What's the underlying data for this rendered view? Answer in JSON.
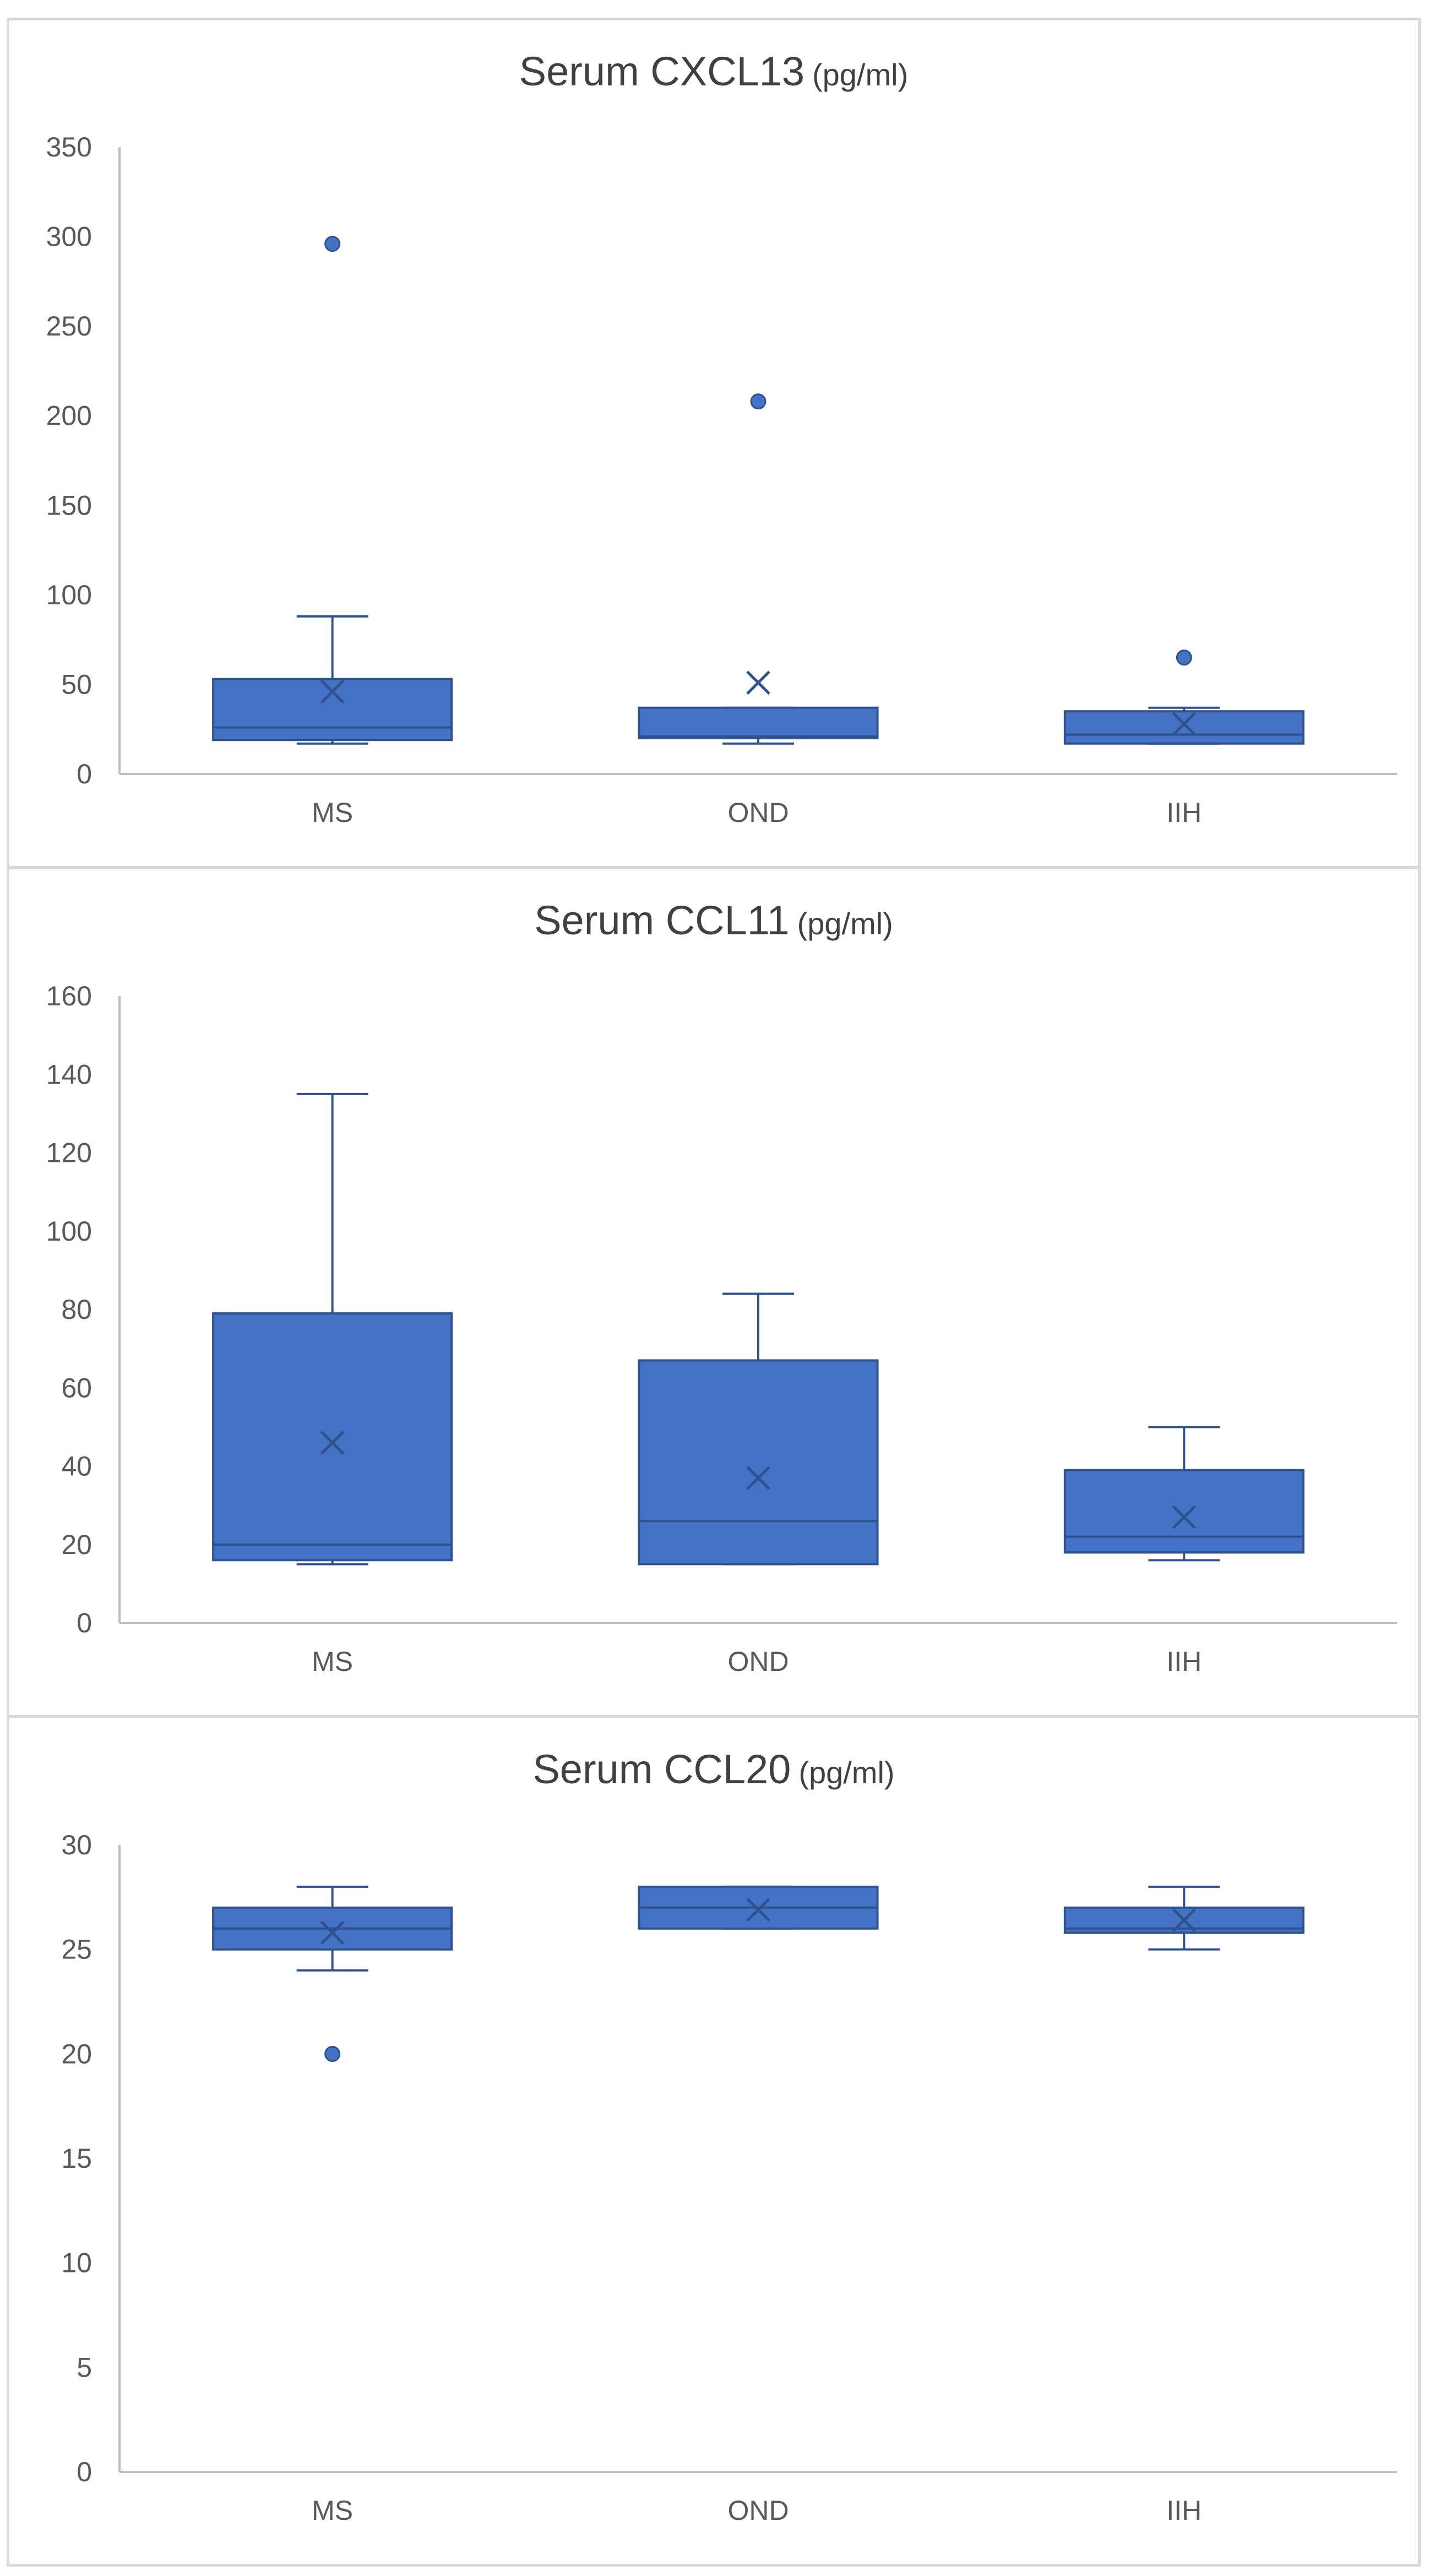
{
  "colors": {
    "box_fill": "#4472C4",
    "box_stroke": "#2F528F",
    "axis": "#BFBFBF",
    "text": "#595959",
    "title": "#404040"
  },
  "chart_data": [
    {
      "type": "boxplot",
      "title": "Serum CXCL13",
      "title_unit": "(pg/ml)",
      "categories": [
        "MS",
        "OND",
        "IIH"
      ],
      "ylim": [
        0,
        350
      ],
      "yticks": [
        0,
        50,
        100,
        150,
        200,
        250,
        300,
        350
      ],
      "grid": false,
      "legend": "none",
      "boxes": [
        {
          "category": "MS",
          "min": 17,
          "q1": 19,
          "median": 26,
          "q3": 53,
          "max": 88,
          "mean": 46,
          "outliers": [
            296
          ]
        },
        {
          "category": "OND",
          "min": 17,
          "q1": 20,
          "median": 21,
          "q3": 37,
          "max": 37,
          "mean": 51,
          "outliers": [
            208
          ]
        },
        {
          "category": "IIH",
          "min": 17,
          "q1": 17,
          "median": 22,
          "q3": 35,
          "max": 37,
          "mean": 28,
          "outliers": [
            65
          ]
        }
      ]
    },
    {
      "type": "boxplot",
      "title": "Serum CCL11",
      "title_unit": "(pg/ml)",
      "categories": [
        "MS",
        "OND",
        "IIH"
      ],
      "ylim": [
        0,
        160
      ],
      "yticks": [
        0,
        20,
        40,
        60,
        80,
        100,
        120,
        140,
        160
      ],
      "grid": false,
      "legend": "none",
      "boxes": [
        {
          "category": "MS",
          "min": 15,
          "q1": 16,
          "median": 20,
          "q3": 79,
          "max": 135,
          "mean": 46,
          "outliers": []
        },
        {
          "category": "OND",
          "min": 15,
          "q1": 15,
          "median": 26,
          "q3": 67,
          "max": 84,
          "mean": 37,
          "outliers": []
        },
        {
          "category": "IIH",
          "min": 16,
          "q1": 18,
          "median": 22,
          "q3": 39,
          "max": 50,
          "mean": 27,
          "outliers": []
        }
      ]
    },
    {
      "type": "boxplot",
      "title": "Serum CCL20",
      "title_unit": "(pg/ml)",
      "categories": [
        "MS",
        "OND",
        "IIH"
      ],
      "ylim": [
        0,
        30
      ],
      "yticks": [
        0,
        5,
        10,
        15,
        20,
        25,
        30
      ],
      "grid": false,
      "legend": "none",
      "boxes": [
        {
          "category": "MS",
          "min": 24,
          "q1": 25,
          "median": 26,
          "q3": 27,
          "max": 28,
          "mean": 25.8,
          "outliers": [
            20
          ]
        },
        {
          "category": "OND",
          "min": 26,
          "q1": 26,
          "median": 27,
          "q3": 28,
          "max": 28,
          "mean": 26.9,
          "outliers": []
        },
        {
          "category": "IIH",
          "min": 25,
          "q1": 25.8,
          "median": 26,
          "q3": 27,
          "max": 28,
          "mean": 26.4,
          "outliers": []
        }
      ]
    }
  ]
}
